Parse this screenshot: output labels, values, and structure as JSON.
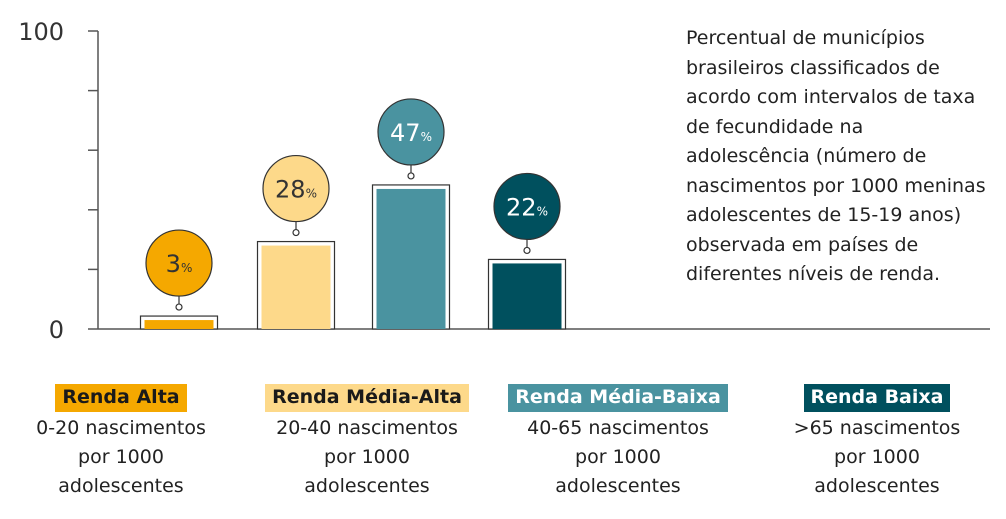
{
  "description": "Percentual de municípios brasileiros classificados de acordo com intervalos de taxa de fecundidade na adolescência (número de nascimentos por 1000 meninas adolescentes de 15-19 anos) observada em países de diferentes níveis de renda.",
  "colors": {
    "alta": "#f5a800",
    "media_alta": "#fdd98a",
    "media_baixa": "#4a93a0",
    "baixa": "#00505e",
    "axis": "#555555"
  },
  "categories": [
    {
      "label": "Renda Alta",
      "range": "0-20 nascimentos\npor 1000\nadolescentes"
    },
    {
      "label": "Renda Média-Alta",
      "range": "20-40 nascimentos\npor 1000\nadolescentes"
    },
    {
      "label": "Renda Média-Baixa",
      "range": "40-65 nascimentos\npor 1000\nadolescentes"
    },
    {
      "label": "Renda Baixa",
      "range": ">65 nascimentos\npor 1000\nadolescentes"
    }
  ],
  "chart_data": {
    "type": "bar",
    "categories": [
      "Renda Alta",
      "Renda Média-Alta",
      "Renda Média-Baixa",
      "Renda Baixa"
    ],
    "values": [
      3,
      28,
      47,
      22
    ],
    "value_suffix": "%",
    "ylim": [
      0,
      100
    ],
    "yticks_labeled": [
      0,
      100
    ],
    "yticks": [
      0,
      20,
      40,
      60,
      80,
      100
    ],
    "grid": false,
    "bar_colors": [
      "#f5a800",
      "#fdd98a",
      "#4a93a0",
      "#00505e"
    ],
    "label_text_colors": [
      "#333333",
      "#333333",
      "#ffffff",
      "#ffffff"
    ]
  }
}
